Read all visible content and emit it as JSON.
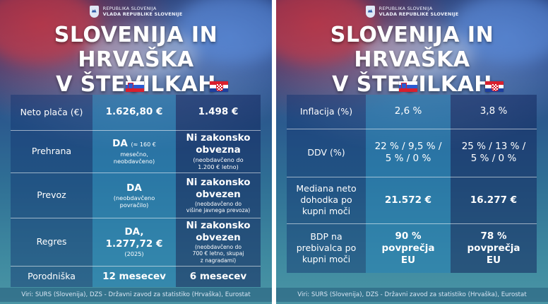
{
  "government": {
    "line1": "REPUBLIKA SLOVENIJA",
    "line2": "VLADA REPUBLIKE SLOVENIJE"
  },
  "title": {
    "line1": "SLOVENIJA IN HRVAŠKA",
    "line2": "V ŠTEVILKAH"
  },
  "left": {
    "rows": [
      {
        "label": [
          "Neto plača (€)"
        ],
        "si_main": "1.626,80 €",
        "hr_main": "1.498 €"
      },
      {
        "label": [
          "Prehrana"
        ],
        "si_main": "DA",
        "si_inline": "(≈ 160 €",
        "si_note": [
          "mesečno,",
          "neobdavčeno)"
        ],
        "hr_main": [
          "Ni zakonsko",
          "obvezna"
        ],
        "hr_note": [
          "(neobdavčeno do",
          "1.200 € letno)"
        ]
      },
      {
        "label": [
          "Prevoz"
        ],
        "si_main": "DA",
        "si_note": [
          "(neobdavčeno",
          "povračilo)"
        ],
        "hr_main": [
          "Ni zakonsko",
          "obvezen"
        ],
        "hr_note": [
          "(neobdavčeno do",
          "višine javnega prevoza)"
        ]
      },
      {
        "label": [
          "Regres"
        ],
        "si_main": [
          "DA,",
          "1.277,72 €"
        ],
        "si_note": [
          "(2025)"
        ],
        "hr_main": [
          "Ni zakonsko",
          "obvezen"
        ],
        "hr_note": [
          "(neobdavčeno do",
          "700 € letno, skupaj",
          "z nagradami)"
        ]
      },
      {
        "label": [
          "Porodniška"
        ],
        "si_main": "12 mesecev",
        "hr_main": "6 mesecev"
      }
    ],
    "source": "Viri: SURS (Slovenija), DZS - Državni zavod za statistiko (Hrvaška), Eurostat"
  },
  "right": {
    "rows": [
      {
        "label": [
          "Inflacija (%)"
        ],
        "si": [
          "2,6 %"
        ],
        "hr": [
          "3,8 %"
        ]
      },
      {
        "label": [
          "DDV (%)"
        ],
        "si": [
          "22 % / 9,5 % /",
          "5 % / 0 %"
        ],
        "hr": [
          "25 % / 13 % /",
          "5 % / 0 %"
        ]
      },
      {
        "label": [
          "Mediana neto",
          "dohodka po",
          "kupni moči"
        ],
        "si": [
          "21.572 €"
        ],
        "hr": [
          "16.277 €"
        ]
      },
      {
        "label": [
          "BDP na",
          "prebivalca po",
          "kupni moči"
        ],
        "si": [
          "90 %",
          "povprečja",
          "EU"
        ],
        "hr": [
          "78 %",
          "povprečja",
          "EU"
        ]
      }
    ],
    "source": "Viri: SURS (Slovenija), DZS - Državni zavod za statistiko (Hrvaška), Eurostat"
  },
  "flags": {
    "slovenia": "flag-slovenia-icon",
    "croatia": "flag-croatia-icon"
  },
  "colors": {
    "label_bg": "#1e3c78",
    "value_bg": "#2f86b4",
    "text": "#ffffff"
  }
}
